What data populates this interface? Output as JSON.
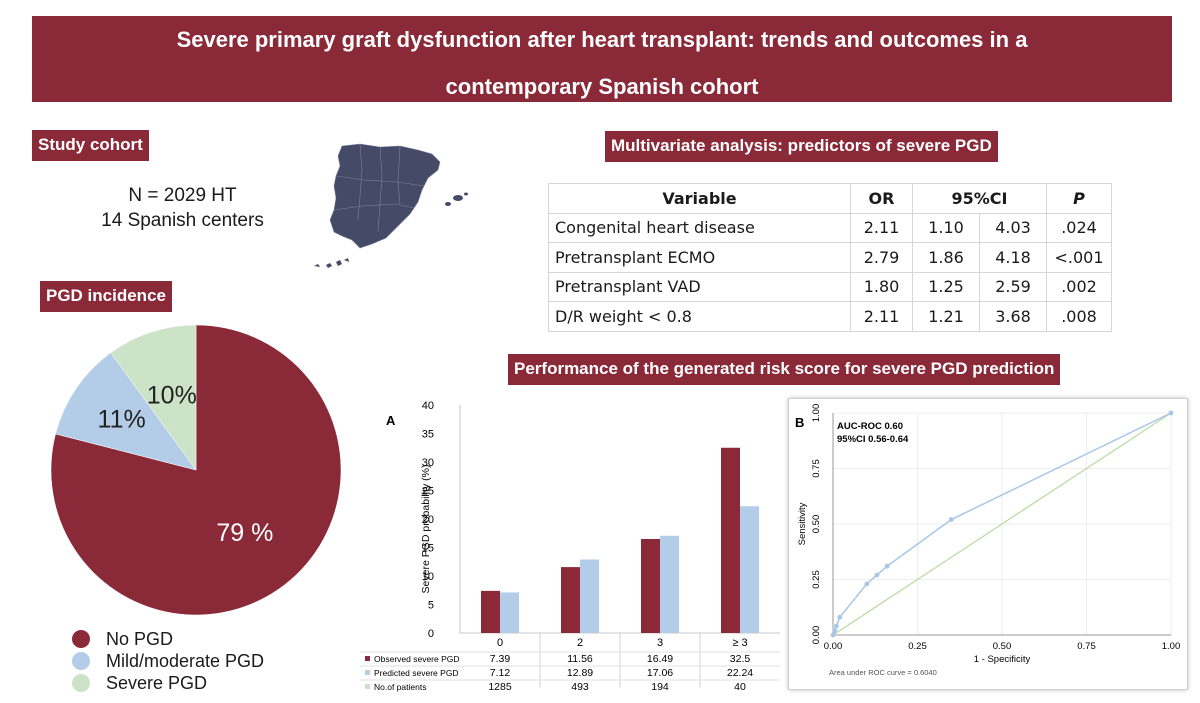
{
  "header": {
    "title_line1": "Severe primary graft dysfunction after heart transplant: trends and outcomes in a",
    "title_line2": "contemporary Spanish cohort"
  },
  "colors": {
    "brand": "#8a2a38",
    "mild": "#b3cde8",
    "severe": "#cde3c8"
  },
  "cohort": {
    "heading": "Study cohort",
    "n_line": "N = 2029 HT",
    "centers_line": "14 Spanish centers"
  },
  "incidence": {
    "heading": "PGD incidence",
    "legend": [
      "No PGD",
      "Mild/moderate PGD",
      "Severe PGD"
    ],
    "slice_labels": [
      "79 %",
      "11%",
      "10%"
    ]
  },
  "multivariate": {
    "heading": "Multivariate analysis: predictors of severe PGD",
    "columns": [
      "Variable",
      "OR",
      "95%CI",
      "P"
    ],
    "rows": [
      [
        "Congenital heart disease",
        "2.11",
        "1.10",
        "4.03",
        ".024"
      ],
      [
        "Pretransplant ECMO",
        "2.79",
        "1.86",
        "4.18",
        "<.001"
      ],
      [
        "Pretransplant VAD",
        "1.80",
        "1.25",
        "2.59",
        ".002"
      ],
      [
        "D/R weight < 0.8",
        "2.11",
        "1.21",
        "3.68",
        ".008"
      ]
    ]
  },
  "performance": {
    "heading": "Performance of the generated risk score for severe PGD prediction"
  },
  "chart_data": [
    {
      "type": "pie",
      "categories": [
        "No PGD",
        "Mild/moderate PGD",
        "Severe PGD"
      ],
      "values": [
        79,
        11,
        10
      ],
      "colors": [
        "#8a2a38",
        "#b3cde8",
        "#cde3c8"
      ],
      "labels": [
        "79 %",
        "11%",
        "10%"
      ]
    },
    {
      "type": "bar",
      "panel_label": "A",
      "categories": [
        "0",
        "2",
        "3",
        "≥ 3"
      ],
      "series": [
        {
          "name": "Observed severe PGD",
          "values": [
            7.39,
            11.56,
            16.49,
            32.5
          ],
          "color": "#8a2a38"
        },
        {
          "name": "Predicted severe PGD",
          "values": [
            7.12,
            12.89,
            17.06,
            22.24
          ],
          "color": "#b3cde8"
        }
      ],
      "table_rows": [
        {
          "name": "Observed severe PGD",
          "cells": [
            "7.39",
            "11.56",
            "16.49",
            "32.5"
          ]
        },
        {
          "name": "Predicted severe PGD",
          "cells": [
            "7.12",
            "12.89",
            "17.06",
            "22.24"
          ]
        },
        {
          "name": "No.of patients",
          "cells": [
            "1285",
            "493",
            "194",
            "40"
          ]
        }
      ],
      "ylabel": "Severe PGD probability (%)",
      "ylim": [
        0,
        40
      ],
      "yticks": [
        0,
        5,
        10,
        15,
        20,
        25,
        30,
        35,
        40
      ],
      "grid": false
    },
    {
      "type": "line",
      "panel_label": "B",
      "annotation_line1": "AUC-ROC 0.60",
      "annotation_line2": "95%CI 0.56-0.64",
      "footer": "Area under ROC curve = 0.6040",
      "xlabel": "1 - Specificity",
      "ylabel": "Sensitivity",
      "xlim": [
        0,
        1
      ],
      "ylim": [
        0,
        1
      ],
      "ticks": [
        "0.00",
        "0.25",
        "0.50",
        "0.75",
        "1.00"
      ],
      "series": [
        {
          "name": "",
          "x": [
            0,
            0.005,
            0.01,
            0.02,
            0.1,
            0.13,
            0.16,
            0.35,
            1.0
          ],
          "y": [
            0,
            0.02,
            0.04,
            0.08,
            0.23,
            0.27,
            0.31,
            0.52,
            1.0
          ],
          "color": "#a9c6e8"
        },
        {
          "name": "",
          "x": [
            0,
            1
          ],
          "y": [
            0,
            1
          ],
          "color": "#b9dca6"
        }
      ],
      "grid": true
    }
  ]
}
